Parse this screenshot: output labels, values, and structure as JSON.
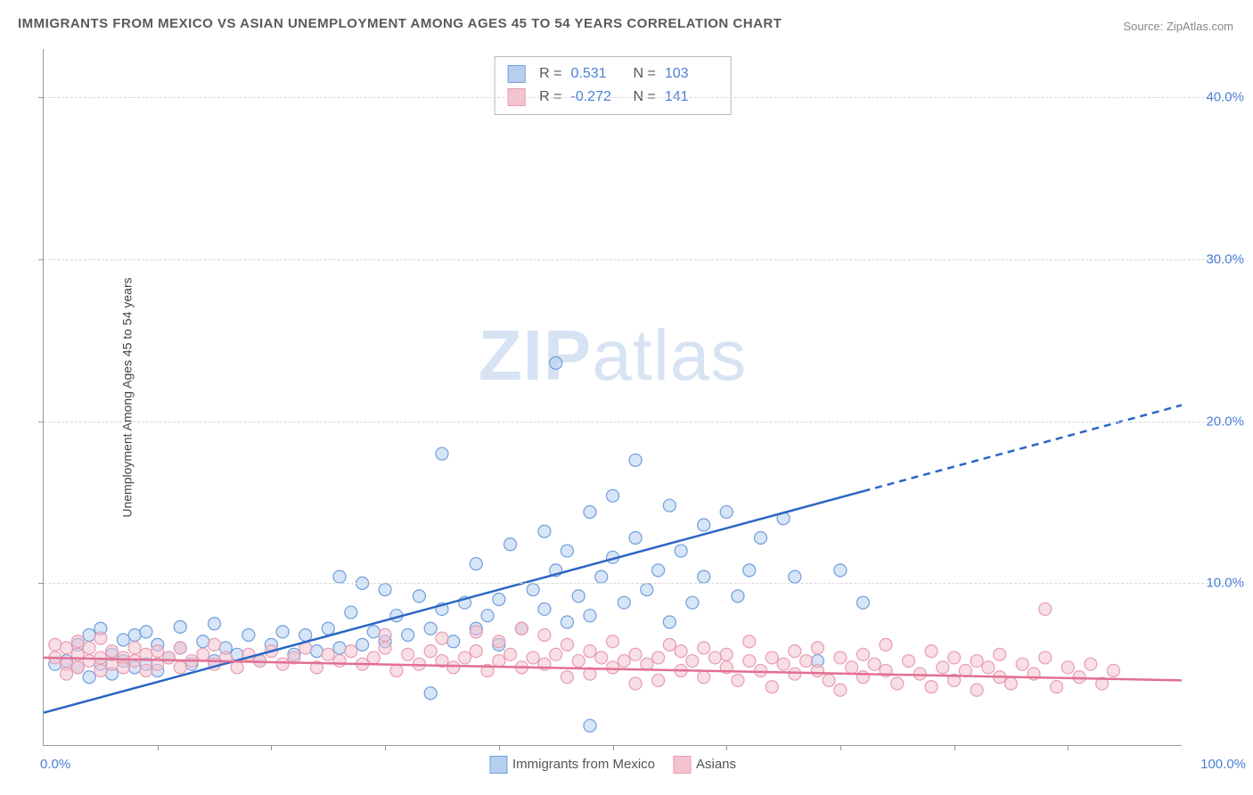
{
  "title": "IMMIGRANTS FROM MEXICO VS ASIAN UNEMPLOYMENT AMONG AGES 45 TO 54 YEARS CORRELATION CHART",
  "source": "Source: ZipAtlas.com",
  "ylabel": "Unemployment Among Ages 45 to 54 years",
  "watermark_bold": "ZIP",
  "watermark_light": "atlas",
  "chart": {
    "type": "scatter",
    "background_color": "#ffffff",
    "grid_color": "#d8d8d8",
    "axis_color": "#999999",
    "tick_text_color": "#4a7fd6",
    "xlim": [
      0,
      100
    ],
    "ylim": [
      0,
      43
    ],
    "yticks": [
      10,
      20,
      30,
      40
    ],
    "ytick_labels": [
      "10.0%",
      "20.0%",
      "30.0%",
      "40.0%"
    ],
    "xtick_left": "0.0%",
    "xtick_right": "100.0%",
    "marker_radius": 7,
    "marker_opacity": 0.55,
    "series": [
      {
        "name": "Immigrants from Mexico",
        "color": "#6f9ede",
        "fill": "#b7cfee",
        "line_color": "#2b66c4",
        "R": "0.531",
        "N": "103",
        "trend": {
          "y_at_0": 2.0,
          "y_at_100": 21.0,
          "solid_until_x": 72
        },
        "points": [
          [
            1,
            5
          ],
          [
            2,
            5.2
          ],
          [
            3,
            4.8
          ],
          [
            3,
            6.2
          ],
          [
            4,
            4.2
          ],
          [
            4,
            6.8
          ],
          [
            5,
            5
          ],
          [
            5,
            7.2
          ],
          [
            6,
            4.4
          ],
          [
            6,
            5.6
          ],
          [
            7,
            5.2
          ],
          [
            7,
            6.5
          ],
          [
            8,
            4.8
          ],
          [
            8,
            6.8
          ],
          [
            9,
            5
          ],
          [
            9,
            7
          ],
          [
            10,
            4.6
          ],
          [
            10,
            6.2
          ],
          [
            11,
            5.4
          ],
          [
            12,
            6
          ],
          [
            12,
            7.3
          ],
          [
            13,
            5
          ],
          [
            14,
            6.4
          ],
          [
            15,
            5.2
          ],
          [
            15,
            7.5
          ],
          [
            16,
            6
          ],
          [
            17,
            5.6
          ],
          [
            18,
            6.8
          ],
          [
            19,
            5.2
          ],
          [
            20,
            6.2
          ],
          [
            21,
            7
          ],
          [
            22,
            5.6
          ],
          [
            23,
            6.8
          ],
          [
            24,
            5.8
          ],
          [
            25,
            7.2
          ],
          [
            26,
            6
          ],
          [
            26,
            10.4
          ],
          [
            27,
            8.2
          ],
          [
            28,
            6.2
          ],
          [
            28,
            10
          ],
          [
            29,
            7
          ],
          [
            30,
            6.4
          ],
          [
            30,
            9.6
          ],
          [
            31,
            8
          ],
          [
            32,
            6.8
          ],
          [
            33,
            9.2
          ],
          [
            34,
            7.2
          ],
          [
            34,
            3.2
          ],
          [
            35,
            8.4
          ],
          [
            35,
            18
          ],
          [
            36,
            6.4
          ],
          [
            37,
            8.8
          ],
          [
            38,
            7.2
          ],
          [
            38,
            11.2
          ],
          [
            39,
            8
          ],
          [
            40,
            9
          ],
          [
            40,
            6.2
          ],
          [
            41,
            12.4
          ],
          [
            42,
            7.2
          ],
          [
            43,
            9.6
          ],
          [
            44,
            8.4
          ],
          [
            44,
            13.2
          ],
          [
            45,
            10.8
          ],
          [
            45,
            23.6
          ],
          [
            46,
            7.6
          ],
          [
            46,
            12
          ],
          [
            47,
            9.2
          ],
          [
            48,
            8
          ],
          [
            48,
            14.4
          ],
          [
            48,
            1.2
          ],
          [
            49,
            10.4
          ],
          [
            50,
            11.6
          ],
          [
            50,
            15.4
          ],
          [
            51,
            8.8
          ],
          [
            52,
            12.8
          ],
          [
            52,
            17.6
          ],
          [
            53,
            9.6
          ],
          [
            54,
            10.8
          ],
          [
            55,
            14.8
          ],
          [
            55,
            7.6
          ],
          [
            56,
            12
          ],
          [
            57,
            8.8
          ],
          [
            58,
            13.6
          ],
          [
            58,
            10.4
          ],
          [
            60,
            14.4
          ],
          [
            61,
            9.2
          ],
          [
            62,
            10.8
          ],
          [
            63,
            12.8
          ],
          [
            65,
            14
          ],
          [
            66,
            10.4
          ],
          [
            68,
            5.2
          ],
          [
            70,
            10.8
          ],
          [
            72,
            8.8
          ]
        ]
      },
      {
        "name": "Asians",
        "color": "#e99cb1",
        "fill": "#f3c3d0",
        "line_color": "#e26f92",
        "R": "-0.272",
        "N": "141",
        "trend": {
          "y_at_0": 5.4,
          "y_at_100": 4.0,
          "solid_until_x": 100
        },
        "points": [
          [
            1,
            5.4
          ],
          [
            1,
            6.2
          ],
          [
            2,
            5
          ],
          [
            2,
            6
          ],
          [
            2,
            4.4
          ],
          [
            3,
            5.6
          ],
          [
            3,
            4.8
          ],
          [
            3,
            6.4
          ],
          [
            4,
            5.2
          ],
          [
            4,
            6
          ],
          [
            5,
            5.4
          ],
          [
            5,
            4.6
          ],
          [
            5,
            6.6
          ],
          [
            6,
            5
          ],
          [
            6,
            5.8
          ],
          [
            7,
            5.4
          ],
          [
            7,
            4.8
          ],
          [
            8,
            6
          ],
          [
            8,
            5.2
          ],
          [
            9,
            5.6
          ],
          [
            9,
            4.6
          ],
          [
            10,
            5.8
          ],
          [
            10,
            5
          ],
          [
            11,
            5.4
          ],
          [
            12,
            6
          ],
          [
            12,
            4.8
          ],
          [
            13,
            5.2
          ],
          [
            14,
            5.6
          ],
          [
            15,
            5
          ],
          [
            15,
            6.2
          ],
          [
            16,
            5.4
          ],
          [
            17,
            4.8
          ],
          [
            18,
            5.6
          ],
          [
            19,
            5.2
          ],
          [
            20,
            5.8
          ],
          [
            21,
            5
          ],
          [
            22,
            5.4
          ],
          [
            23,
            6
          ],
          [
            24,
            4.8
          ],
          [
            25,
            5.6
          ],
          [
            26,
            5.2
          ],
          [
            27,
            5.8
          ],
          [
            28,
            5
          ],
          [
            29,
            5.4
          ],
          [
            30,
            6
          ],
          [
            30,
            6.8
          ],
          [
            31,
            4.6
          ],
          [
            32,
            5.6
          ],
          [
            33,
            5
          ],
          [
            34,
            5.8
          ],
          [
            35,
            5.2
          ],
          [
            35,
            6.6
          ],
          [
            36,
            4.8
          ],
          [
            37,
            5.4
          ],
          [
            38,
            5.8
          ],
          [
            38,
            7
          ],
          [
            39,
            4.6
          ],
          [
            40,
            5.2
          ],
          [
            40,
            6.4
          ],
          [
            41,
            5.6
          ],
          [
            42,
            4.8
          ],
          [
            42,
            7.2
          ],
          [
            43,
            5.4
          ],
          [
            44,
            5
          ],
          [
            44,
            6.8
          ],
          [
            45,
            5.6
          ],
          [
            46,
            4.2
          ],
          [
            46,
            6.2
          ],
          [
            47,
            5.2
          ],
          [
            48,
            5.8
          ],
          [
            48,
            4.4
          ],
          [
            49,
            5.4
          ],
          [
            50,
            4.8
          ],
          [
            50,
            6.4
          ],
          [
            51,
            5.2
          ],
          [
            52,
            5.6
          ],
          [
            52,
            3.8
          ],
          [
            53,
            5
          ],
          [
            54,
            5.4
          ],
          [
            54,
            4
          ],
          [
            55,
            6.2
          ],
          [
            56,
            4.6
          ],
          [
            56,
            5.8
          ],
          [
            57,
            5.2
          ],
          [
            58,
            4.2
          ],
          [
            58,
            6
          ],
          [
            59,
            5.4
          ],
          [
            60,
            4.8
          ],
          [
            60,
            5.6
          ],
          [
            61,
            4
          ],
          [
            62,
            5.2
          ],
          [
            62,
            6.4
          ],
          [
            63,
            4.6
          ],
          [
            64,
            5.4
          ],
          [
            64,
            3.6
          ],
          [
            65,
            5
          ],
          [
            66,
            4.4
          ],
          [
            66,
            5.8
          ],
          [
            67,
            5.2
          ],
          [
            68,
            4.6
          ],
          [
            68,
            6
          ],
          [
            69,
            4
          ],
          [
            70,
            5.4
          ],
          [
            70,
            3.4
          ],
          [
            71,
            4.8
          ],
          [
            72,
            5.6
          ],
          [
            72,
            4.2
          ],
          [
            73,
            5
          ],
          [
            74,
            4.6
          ],
          [
            74,
            6.2
          ],
          [
            75,
            3.8
          ],
          [
            76,
            5.2
          ],
          [
            77,
            4.4
          ],
          [
            78,
            5.8
          ],
          [
            78,
            3.6
          ],
          [
            79,
            4.8
          ],
          [
            80,
            5.4
          ],
          [
            80,
            4
          ],
          [
            81,
            4.6
          ],
          [
            82,
            5.2
          ],
          [
            82,
            3.4
          ],
          [
            83,
            4.8
          ],
          [
            84,
            5.6
          ],
          [
            84,
            4.2
          ],
          [
            85,
            3.8
          ],
          [
            86,
            5
          ],
          [
            87,
            4.4
          ],
          [
            88,
            5.4
          ],
          [
            88,
            8.4
          ],
          [
            89,
            3.6
          ],
          [
            90,
            4.8
          ],
          [
            91,
            4.2
          ],
          [
            92,
            5
          ],
          [
            93,
            3.8
          ],
          [
            94,
            4.6
          ]
        ]
      }
    ]
  },
  "legend_bottom": [
    {
      "label": "Immigrants from Mexico",
      "fill": "#b7cfee",
      "border": "#6f9ede"
    },
    {
      "label": "Asians",
      "fill": "#f3c3d0",
      "border": "#e99cb1"
    }
  ]
}
